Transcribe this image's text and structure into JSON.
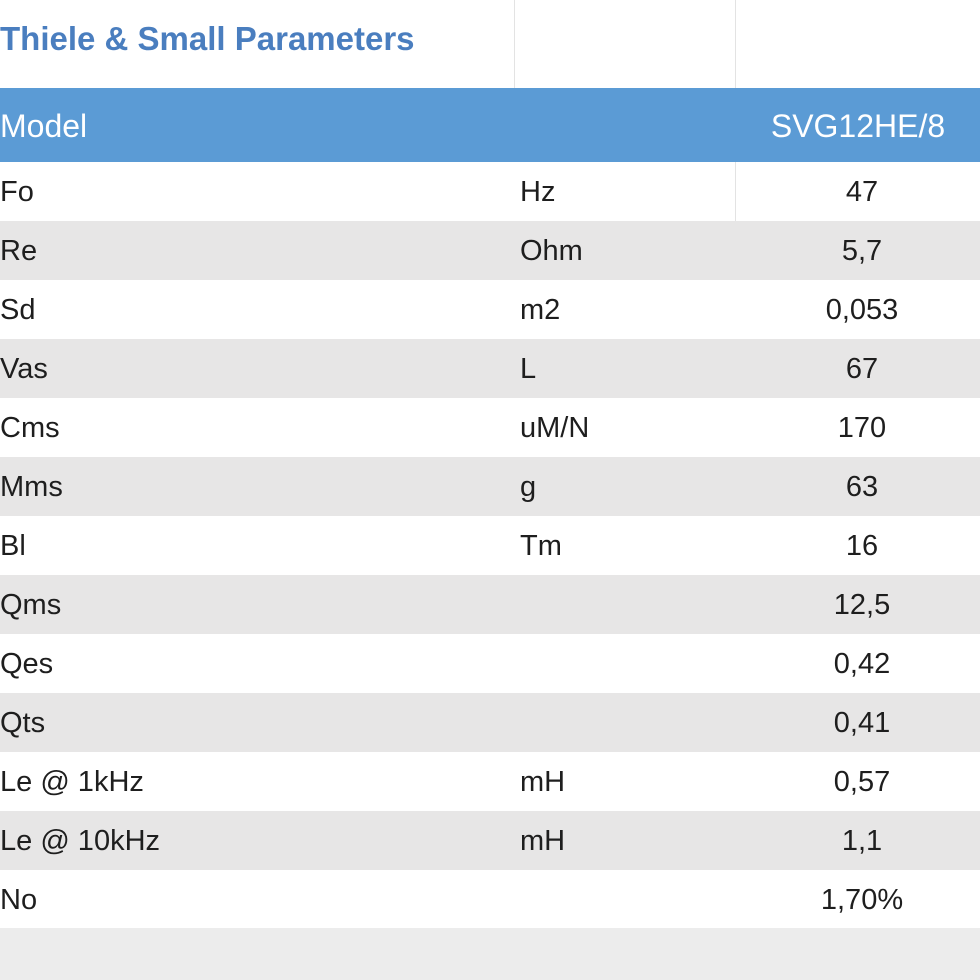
{
  "header": {
    "title": "Thiele & Small Parameters"
  },
  "table": {
    "columns": {
      "parameter": "Model",
      "value": "SVG12HE/8"
    },
    "rows": [
      {
        "parameter": "Fo",
        "unit": "Hz",
        "value": "47"
      },
      {
        "parameter": "Re",
        "unit": "Ohm",
        "value": "5,7"
      },
      {
        "parameter": "Sd",
        "unit": "m2",
        "value": "0,053"
      },
      {
        "parameter": "Vas",
        "unit": "L",
        "value": "67"
      },
      {
        "parameter": "Cms",
        "unit": "uM/N",
        "value": "170"
      },
      {
        "parameter": "Mms",
        "unit": "g",
        "value": "63"
      },
      {
        "parameter": "Bl",
        "unit": "Tm",
        "value": "16"
      },
      {
        "parameter": "Qms",
        "value": "12,5"
      },
      {
        "parameter": "Qes",
        "value": "0,42"
      },
      {
        "parameter": "Qts",
        "value": "0,41"
      },
      {
        "parameter": "Le @ 1kHz",
        "unit": "mH",
        "value": "0,57"
      },
      {
        "parameter": "Le @ 10kHz",
        "unit": "mH",
        "value": "1,1"
      },
      {
        "parameter": "No",
        "value": "1,70%"
      }
    ]
  }
}
